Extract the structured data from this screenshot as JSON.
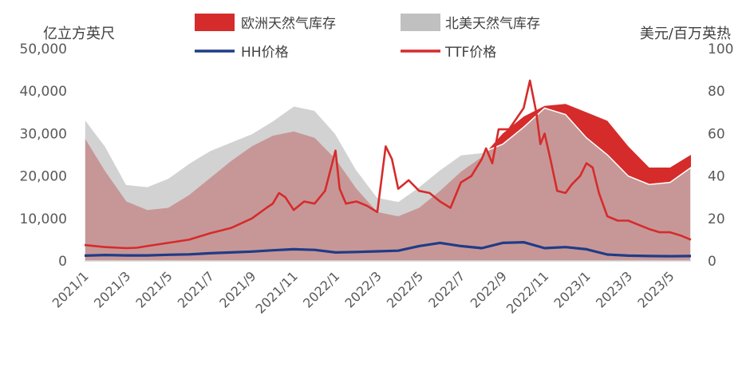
{
  "chart_data": {
    "type": "area",
    "y_left_unit": "亿立方英尺",
    "y_right_unit": "美元/百万英热",
    "ylim_left": [
      0,
      50000
    ],
    "ylim_right": [
      0,
      100
    ],
    "y_left_ticks": [
      "0",
      "10,000",
      "20,000",
      "30,000",
      "40,000",
      "50,000"
    ],
    "y_right_ticks": [
      "0",
      "20",
      "40",
      "60",
      "80",
      "100"
    ],
    "x_ticks": [
      "2021/1",
      "2021/3",
      "2021/5",
      "2021/7",
      "2021/9",
      "2021/11",
      "2022/1",
      "2022/3",
      "2022/5",
      "2022/7",
      "2022/9",
      "2022/11",
      "2023/1",
      "2023/3",
      "2023/5"
    ],
    "x_domain_months": [
      0,
      29
    ],
    "grid": false,
    "legend_position": "top",
    "series": [
      {
        "name": "欧洲天然气库存",
        "kind": "area",
        "axis": "left",
        "color": "#d62b2b",
        "points": [
          [
            0,
            29000
          ],
          [
            1,
            21000
          ],
          [
            2,
            14000
          ],
          [
            3,
            12000
          ],
          [
            4,
            12500
          ],
          [
            5,
            15500
          ],
          [
            6,
            19500
          ],
          [
            7,
            23500
          ],
          [
            8,
            27000
          ],
          [
            9,
            29500
          ],
          [
            10,
            30500
          ],
          [
            11,
            29000
          ],
          [
            12,
            24000
          ],
          [
            13,
            17000
          ],
          [
            14,
            11500
          ],
          [
            15,
            10500
          ],
          [
            16,
            12500
          ],
          [
            17,
            16500
          ],
          [
            18,
            21000
          ],
          [
            19,
            24500
          ],
          [
            20,
            30000
          ],
          [
            21,
            34000
          ],
          [
            22,
            36500
          ],
          [
            23,
            37000
          ],
          [
            24,
            35000
          ],
          [
            25,
            33000
          ],
          [
            26,
            27000
          ],
          [
            27,
            22000
          ],
          [
            28,
            22000
          ],
          [
            29,
            25000
          ]
        ]
      },
      {
        "name": "北美天然气库存",
        "kind": "area",
        "axis": "left",
        "color": "#c0c0c0",
        "points": [
          [
            0,
            33500
          ],
          [
            1,
            27000
          ],
          [
            2,
            18000
          ],
          [
            3,
            17500
          ],
          [
            4,
            19500
          ],
          [
            5,
            23000
          ],
          [
            6,
            26000
          ],
          [
            7,
            28000
          ],
          [
            8,
            30000
          ],
          [
            9,
            33000
          ],
          [
            10,
            36500
          ],
          [
            11,
            35500
          ],
          [
            12,
            30000
          ],
          [
            13,
            21500
          ],
          [
            14,
            15000
          ],
          [
            15,
            14000
          ],
          [
            16,
            17500
          ],
          [
            17,
            21500
          ],
          [
            18,
            25000
          ],
          [
            19,
            25500
          ],
          [
            20,
            27500
          ],
          [
            21,
            31500
          ],
          [
            22,
            36000
          ],
          [
            23,
            34500
          ],
          [
            24,
            29000
          ],
          [
            25,
            25000
          ],
          [
            26,
            20000
          ],
          [
            27,
            18000
          ],
          [
            28,
            18500
          ],
          [
            29,
            22000
          ]
        ]
      },
      {
        "name": "HH价格",
        "kind": "line",
        "axis": "right",
        "color": "#1f3c88",
        "points": [
          [
            0,
            2.5
          ],
          [
            1,
            2.8
          ],
          [
            2,
            2.6
          ],
          [
            3,
            2.6
          ],
          [
            4,
            2.9
          ],
          [
            5,
            3.1
          ],
          [
            6,
            3.6
          ],
          [
            7,
            4.0
          ],
          [
            8,
            4.4
          ],
          [
            9,
            5.0
          ],
          [
            10,
            5.5
          ],
          [
            11,
            5.2
          ],
          [
            12,
            4.0
          ],
          [
            13,
            4.2
          ],
          [
            14,
            4.5
          ],
          [
            15,
            4.8
          ],
          [
            16,
            7.0
          ],
          [
            17,
            8.5
          ],
          [
            18,
            7.0
          ],
          [
            19,
            6.0
          ],
          [
            20,
            8.5
          ],
          [
            21,
            8.8
          ],
          [
            22,
            6.0
          ],
          [
            23,
            6.5
          ],
          [
            24,
            5.5
          ],
          [
            25,
            3.0
          ],
          [
            26,
            2.5
          ],
          [
            27,
            2.3
          ],
          [
            28,
            2.2
          ],
          [
            29,
            2.3
          ]
        ]
      },
      {
        "name": "TTF价格",
        "kind": "line",
        "axis": "right",
        "color": "#d62b2b",
        "points": [
          [
            0,
            7.5
          ],
          [
            1,
            6.5
          ],
          [
            2,
            6.0
          ],
          [
            2.5,
            6.2
          ],
          [
            3,
            7.0
          ],
          [
            4,
            8.5
          ],
          [
            5,
            10.0
          ],
          [
            6,
            13.0
          ],
          [
            7,
            15.5
          ],
          [
            8,
            20.0
          ],
          [
            8.7,
            25.0
          ],
          [
            9,
            27.0
          ],
          [
            9.3,
            32.0
          ],
          [
            9.6,
            30.0
          ],
          [
            10,
            24.0
          ],
          [
            10.5,
            28.0
          ],
          [
            11,
            27.0
          ],
          [
            11.5,
            33.0
          ],
          [
            12,
            52.0
          ],
          [
            12.2,
            34.0
          ],
          [
            12.5,
            27.0
          ],
          [
            13,
            28.0
          ],
          [
            13.5,
            26.0
          ],
          [
            14,
            23.0
          ],
          [
            14.4,
            54.0
          ],
          [
            14.7,
            48.0
          ],
          [
            15,
            34.0
          ],
          [
            15.5,
            38.0
          ],
          [
            16,
            33.0
          ],
          [
            16.5,
            32.0
          ],
          [
            17,
            28.0
          ],
          [
            17.5,
            25.0
          ],
          [
            18,
            37.0
          ],
          [
            18.5,
            40.0
          ],
          [
            19,
            48.0
          ],
          [
            19.2,
            53.0
          ],
          [
            19.5,
            46.0
          ],
          [
            19.8,
            62.0
          ],
          [
            20.3,
            62.0
          ],
          [
            21,
            72.0
          ],
          [
            21.3,
            85.0
          ],
          [
            21.6,
            70.0
          ],
          [
            21.8,
            55.0
          ],
          [
            22,
            60.0
          ],
          [
            22.3,
            47.0
          ],
          [
            22.6,
            33.0
          ],
          [
            23,
            32.0
          ],
          [
            23.3,
            36.0
          ],
          [
            23.7,
            40.0
          ],
          [
            24,
            46.0
          ],
          [
            24.3,
            44.0
          ],
          [
            24.6,
            32.0
          ],
          [
            25,
            21.0
          ],
          [
            25.5,
            19.0
          ],
          [
            26,
            19.0
          ],
          [
            26.5,
            17.0
          ],
          [
            27,
            15.0
          ],
          [
            27.5,
            13.5
          ],
          [
            28,
            13.5
          ],
          [
            28.5,
            12.0
          ],
          [
            29,
            10.0
          ]
        ]
      }
    ]
  }
}
